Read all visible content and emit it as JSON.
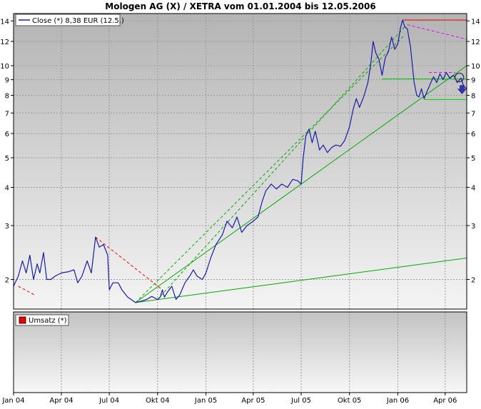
{
  "chart_data": [
    {
      "type": "line",
      "title": "Mologen AG (X) / XETRA vom 01.01.2004 bis 12.05.2006",
      "scale": "log",
      "ylim": [
        1.6,
        14.8
      ],
      "yticks": [
        2,
        3,
        4,
        5,
        6,
        7,
        8,
        9,
        10,
        12,
        14
      ],
      "xlim": [
        "2004-01-01",
        "2006-05-12"
      ],
      "xticks": [
        {
          "label": "Jan 04",
          "date": "2004-01-01"
        },
        {
          "label": "Apr 04",
          "date": "2004-04-01"
        },
        {
          "label": "Jul 04",
          "date": "2004-07-01"
        },
        {
          "label": "Okt 04",
          "date": "2004-10-01"
        },
        {
          "label": "Jan 05",
          "date": "2005-01-01"
        },
        {
          "label": "Apr 05",
          "date": "2005-04-01"
        },
        {
          "label": "Jul 05",
          "date": "2005-07-01"
        },
        {
          "label": "Okt 05",
          "date": "2005-10-01"
        },
        {
          "label": "Jan 06",
          "date": "2006-01-01"
        },
        {
          "label": "Apr 06",
          "date": "2006-04-01"
        }
      ],
      "grid": true,
      "legend": "top-left",
      "series": [
        {
          "name": "Close (*) 8,38 EUR (12.5.)",
          "color": "#1a1aaa",
          "points": [
            [
              "2004-01-01",
              1.9
            ],
            [
              "2004-01-10",
              2.05
            ],
            [
              "2004-01-18",
              2.3
            ],
            [
              "2004-01-25",
              2.1
            ],
            [
              "2004-02-01",
              2.4
            ],
            [
              "2004-02-08",
              2.0
            ],
            [
              "2004-02-15",
              2.25
            ],
            [
              "2004-02-20",
              2.1
            ],
            [
              "2004-02-27",
              2.45
            ],
            [
              "2004-03-04",
              2.0
            ],
            [
              "2004-03-12",
              2.0
            ],
            [
              "2004-03-20",
              2.05
            ],
            [
              "2004-04-01",
              2.1
            ],
            [
              "2004-04-15",
              2.12
            ],
            [
              "2004-04-25",
              2.15
            ],
            [
              "2004-05-02",
              1.95
            ],
            [
              "2004-05-10",
              2.05
            ],
            [
              "2004-05-20",
              2.3
            ],
            [
              "2004-05-28",
              2.1
            ],
            [
              "2004-06-05",
              2.75
            ],
            [
              "2004-06-12",
              2.55
            ],
            [
              "2004-06-20",
              2.6
            ],
            [
              "2004-06-28",
              2.4
            ],
            [
              "2004-07-01",
              1.85
            ],
            [
              "2004-07-08",
              1.95
            ],
            [
              "2004-07-18",
              1.95
            ],
            [
              "2004-07-25",
              1.85
            ],
            [
              "2004-08-05",
              1.75
            ],
            [
              "2004-08-20",
              1.68
            ],
            [
              "2004-09-01",
              1.7
            ],
            [
              "2004-09-10",
              1.72
            ],
            [
              "2004-09-20",
              1.76
            ],
            [
              "2004-10-01",
              1.72
            ],
            [
              "2004-10-06",
              1.75
            ],
            [
              "2004-10-10",
              1.85
            ],
            [
              "2004-10-14",
              1.75
            ],
            [
              "2004-10-20",
              1.82
            ],
            [
              "2004-10-28",
              1.9
            ],
            [
              "2004-11-05",
              1.72
            ],
            [
              "2004-11-12",
              1.78
            ],
            [
              "2004-11-22",
              1.95
            ],
            [
              "2004-12-01",
              2.05
            ],
            [
              "2004-12-08",
              2.15
            ],
            [
              "2004-12-15",
              2.05
            ],
            [
              "2004-12-25",
              2.0
            ],
            [
              "2005-01-01",
              2.1
            ],
            [
              "2005-01-10",
              2.35
            ],
            [
              "2005-01-20",
              2.6
            ],
            [
              "2005-02-01",
              2.8
            ],
            [
              "2005-02-10",
              3.1
            ],
            [
              "2005-02-20",
              2.95
            ],
            [
              "2005-03-01",
              3.2
            ],
            [
              "2005-03-10",
              2.85
            ],
            [
              "2005-03-20",
              3.0
            ],
            [
              "2005-04-01",
              3.1
            ],
            [
              "2005-04-10",
              3.2
            ],
            [
              "2005-04-18",
              3.6
            ],
            [
              "2005-04-25",
              3.9
            ],
            [
              "2005-05-05",
              4.1
            ],
            [
              "2005-05-15",
              3.95
            ],
            [
              "2005-05-25",
              4.1
            ],
            [
              "2005-06-05",
              4.0
            ],
            [
              "2005-06-15",
              4.25
            ],
            [
              "2005-06-25",
              4.2
            ],
            [
              "2005-07-01",
              4.1
            ],
            [
              "2005-07-05",
              5.0
            ],
            [
              "2005-07-10",
              5.9
            ],
            [
              "2005-07-16",
              6.2
            ],
            [
              "2005-07-22",
              5.6
            ],
            [
              "2005-07-28",
              6.1
            ],
            [
              "2005-08-05",
              5.3
            ],
            [
              "2005-08-12",
              5.5
            ],
            [
              "2005-08-20",
              5.2
            ],
            [
              "2005-08-28",
              5.4
            ],
            [
              "2005-09-05",
              5.5
            ],
            [
              "2005-09-14",
              5.45
            ],
            [
              "2005-09-22",
              5.7
            ],
            [
              "2005-10-01",
              6.3
            ],
            [
              "2005-10-08",
              7.2
            ],
            [
              "2005-10-14",
              7.8
            ],
            [
              "2005-10-20",
              7.3
            ],
            [
              "2005-10-28",
              7.9
            ],
            [
              "2005-11-05",
              8.8
            ],
            [
              "2005-11-10",
              10.0
            ],
            [
              "2005-11-15",
              12.0
            ],
            [
              "2005-11-20",
              11.0
            ],
            [
              "2005-11-26",
              10.5
            ],
            [
              "2005-12-02",
              9.3
            ],
            [
              "2005-12-08",
              10.6
            ],
            [
              "2005-12-14",
              11.1
            ],
            [
              "2005-12-20",
              12.4
            ],
            [
              "2005-12-26",
              11.3
            ],
            [
              "2006-01-01",
              11.8
            ],
            [
              "2006-01-06",
              13.3
            ],
            [
              "2006-01-10",
              14.1
            ],
            [
              "2006-01-14",
              13.4
            ],
            [
              "2006-01-19",
              13.2
            ],
            [
              "2006-01-25",
              11.5
            ],
            [
              "2006-02-01",
              8.8
            ],
            [
              "2006-02-06",
              8.0
            ],
            [
              "2006-02-10",
              7.9
            ],
            [
              "2006-02-15",
              8.4
            ],
            [
              "2006-02-20",
              7.8
            ],
            [
              "2006-02-25",
              8.2
            ],
            [
              "2006-03-01",
              8.5
            ],
            [
              "2006-03-06",
              8.9
            ],
            [
              "2006-03-10",
              9.2
            ],
            [
              "2006-03-16",
              8.8
            ],
            [
              "2006-03-22",
              9.4
            ],
            [
              "2006-03-28",
              9.0
            ],
            [
              "2006-04-03",
              9.5
            ],
            [
              "2006-04-10",
              9.1
            ],
            [
              "2006-04-17",
              9.3
            ],
            [
              "2006-04-24",
              8.8
            ],
            [
              "2006-05-01",
              9.1
            ],
            [
              "2006-05-06",
              8.6
            ],
            [
              "2006-05-12",
              8.38
            ]
          ]
        }
      ],
      "trendlines": [
        {
          "color": "#00aa00",
          "style": "solid",
          "from": [
            "2004-08-20",
            1.68
          ],
          "to": [
            "2006-05-12",
            2.35
          ]
        },
        {
          "color": "#00aa00",
          "style": "solid",
          "from": [
            "2004-08-20",
            1.68
          ],
          "to": [
            "2006-05-12",
            10.0
          ]
        },
        {
          "color": "#00aa00",
          "style": "dashed",
          "from": [
            "2004-08-20",
            1.68
          ],
          "to": [
            "2006-01-14",
            12.6
          ]
        },
        {
          "color": "#00aa00",
          "style": "dashed",
          "from": [
            "2004-10-01",
            1.72
          ],
          "to": [
            "2006-01-14",
            13.4
          ]
        },
        {
          "color": "#ff0000",
          "style": "dashed",
          "from": [
            "2004-06-05",
            2.75
          ],
          "to": [
            "2004-10-10",
            1.85
          ]
        },
        {
          "color": "#ff0000",
          "style": "dashed",
          "from": [
            "2004-01-10",
            1.9
          ],
          "to": [
            "2004-02-10",
            1.78
          ]
        },
        {
          "color": "#ee0000",
          "style": "solid",
          "from": [
            "2006-01-10",
            14.1
          ],
          "to": [
            "2006-05-12",
            14.1
          ]
        },
        {
          "color": "#ee00ee",
          "style": "dashed",
          "from": [
            "2006-01-19",
            13.6
          ],
          "to": [
            "2006-05-12",
            12.2
          ]
        },
        {
          "color": "#00cc00",
          "style": "solid",
          "from": [
            "2005-12-02",
            9.05
          ],
          "to": [
            "2006-05-12",
            9.05
          ]
        },
        {
          "color": "#00cc00",
          "style": "solid",
          "from": [
            "2006-02-20",
            7.75
          ],
          "to": [
            "2006-05-12",
            7.75
          ]
        },
        {
          "color": "#ee00ee",
          "style": "dashed",
          "from": [
            "2006-03-01",
            9.5
          ],
          "to": [
            "2006-04-20",
            9.5
          ]
        }
      ],
      "markers": [
        {
          "type": "circle",
          "at": [
            "2006-04-28",
            9.15
          ],
          "color": "#333366"
        },
        {
          "type": "arrow-down",
          "at": [
            "2006-05-03",
            8.3
          ],
          "color": "#3333aa"
        }
      ]
    },
    {
      "type": "bar",
      "legend": "top-left",
      "series": [
        {
          "name": "Umsatz (*)",
          "color": "#ee0000",
          "values": []
        }
      ]
    }
  ]
}
